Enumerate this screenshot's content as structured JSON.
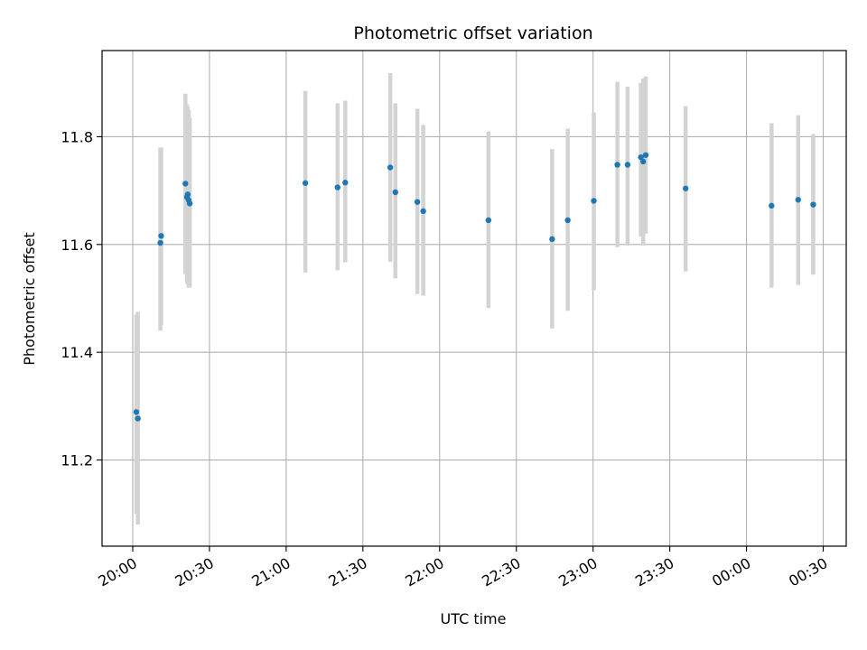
{
  "chart_data": {
    "type": "scatter",
    "title": "Photometric offset variation",
    "xlabel": "UTC time",
    "ylabel": "Photometric offset",
    "grid": true,
    "x_tick_labels": [
      "20:00",
      "20:30",
      "21:00",
      "21:30",
      "22:00",
      "22:30",
      "23:00",
      "23:30",
      "00:00",
      "00:30"
    ],
    "x_tick_positions_min": [
      0,
      30,
      60,
      90,
      120,
      150,
      180,
      210,
      240,
      270
    ],
    "xlim_min": [
      -12,
      279
    ],
    "y_ticks": [
      11.2,
      11.4,
      11.6,
      11.8
    ],
    "y_tick_labels": [
      "11.2",
      "11.4",
      "11.6",
      "11.8"
    ],
    "ylim": [
      11.04,
      11.96
    ],
    "marker_color": "#1f77b4",
    "errorbar_color": "#d3d3d3",
    "series": [
      {
        "points": [
          {
            "t": 1.4,
            "y": 11.289,
            "lo": 11.1,
            "hi": 11.47
          },
          {
            "t": 2.0,
            "y": 11.277,
            "lo": 11.08,
            "hi": 11.475
          },
          {
            "t": 10.8,
            "y": 11.603,
            "lo": 11.44,
            "hi": 11.78
          },
          {
            "t": 11.1,
            "y": 11.616,
            "lo": 11.45,
            "hi": 11.78
          },
          {
            "t": 20.6,
            "y": 11.713,
            "lo": 11.545,
            "hi": 11.88
          },
          {
            "t": 21.2,
            "y": 11.688,
            "lo": 11.53,
            "hi": 11.86
          },
          {
            "t": 21.5,
            "y": 11.693,
            "lo": 11.525,
            "hi": 11.855
          },
          {
            "t": 21.9,
            "y": 11.682,
            "lo": 11.52,
            "hi": 11.85
          },
          {
            "t": 22.3,
            "y": 11.676,
            "lo": 11.52,
            "hi": 11.835
          },
          {
            "t": 67.5,
            "y": 11.714,
            "lo": 11.548,
            "hi": 11.885
          },
          {
            "t": 80.1,
            "y": 11.706,
            "lo": 11.552,
            "hi": 11.862
          },
          {
            "t": 83.1,
            "y": 11.715,
            "lo": 11.567,
            "hi": 11.867
          },
          {
            "t": 100.7,
            "y": 11.743,
            "lo": 11.568,
            "hi": 11.918
          },
          {
            "t": 102.7,
            "y": 11.697,
            "lo": 11.537,
            "hi": 11.862
          },
          {
            "t": 111.3,
            "y": 11.679,
            "lo": 11.508,
            "hi": 11.852
          },
          {
            "t": 113.6,
            "y": 11.662,
            "lo": 11.505,
            "hi": 11.822
          },
          {
            "t": 139.1,
            "y": 11.645,
            "lo": 11.482,
            "hi": 11.81
          },
          {
            "t": 164.0,
            "y": 11.61,
            "lo": 11.444,
            "hi": 11.777
          },
          {
            "t": 170.1,
            "y": 11.645,
            "lo": 11.477,
            "hi": 11.815
          },
          {
            "t": 180.3,
            "y": 11.681,
            "lo": 11.515,
            "hi": 11.845
          },
          {
            "t": 189.5,
            "y": 11.748,
            "lo": 11.595,
            "hi": 11.902
          },
          {
            "t": 193.5,
            "y": 11.748,
            "lo": 11.598,
            "hi": 11.893
          },
          {
            "t": 198.7,
            "y": 11.762,
            "lo": 11.615,
            "hi": 11.9
          },
          {
            "t": 199.6,
            "y": 11.754,
            "lo": 11.598,
            "hi": 11.908
          },
          {
            "t": 200.6,
            "y": 11.766,
            "lo": 11.62,
            "hi": 11.912
          },
          {
            "t": 216.2,
            "y": 11.704,
            "lo": 11.55,
            "hi": 11.857
          },
          {
            "t": 249.8,
            "y": 11.672,
            "lo": 11.52,
            "hi": 11.825
          },
          {
            "t": 260.2,
            "y": 11.683,
            "lo": 11.525,
            "hi": 11.84
          },
          {
            "t": 266.1,
            "y": 11.674,
            "lo": 11.544,
            "hi": 11.805
          }
        ]
      }
    ]
  }
}
